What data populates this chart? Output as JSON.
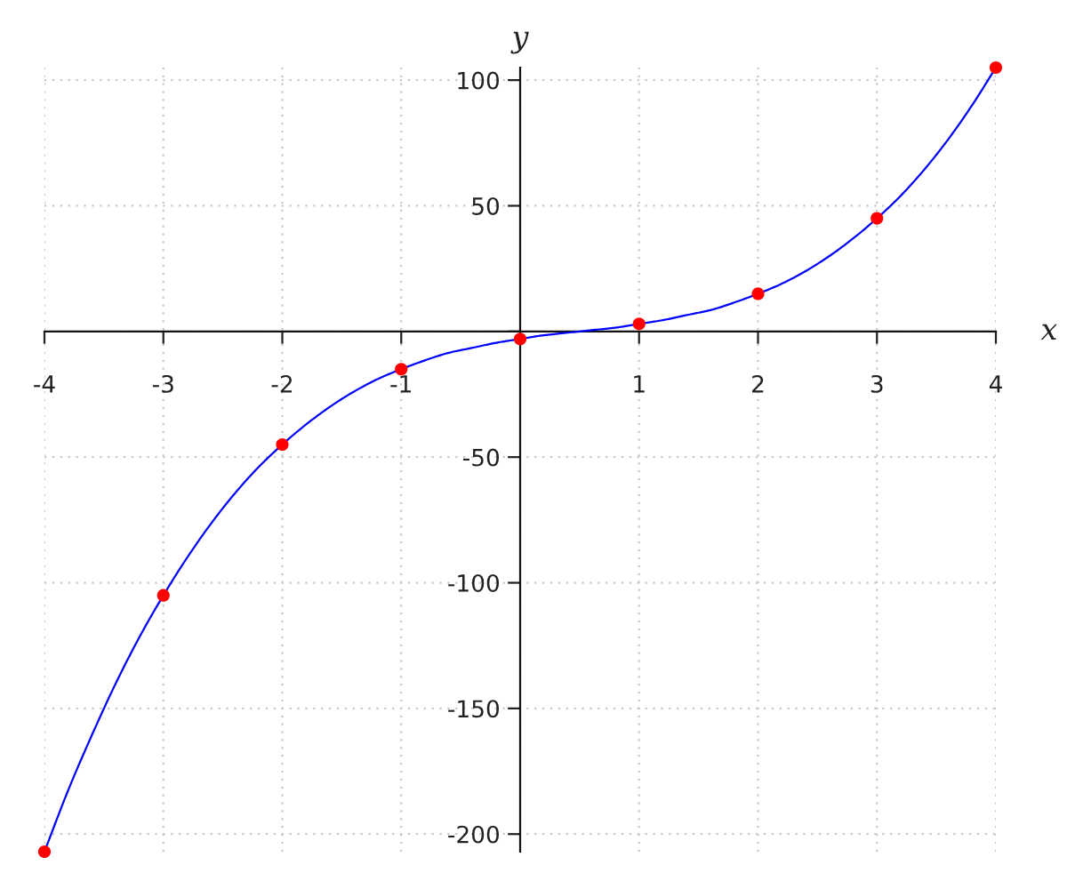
{
  "chart_data": {
    "type": "line",
    "xlabel": "x",
    "ylabel": "y",
    "xlim": [
      -4,
      4
    ],
    "ylim": [
      -207,
      105
    ],
    "xticks": [
      -4,
      -3,
      -2,
      -1,
      {
        "value": 0,
        "label": null
      },
      1,
      2,
      3,
      4
    ],
    "yticks": [
      -200,
      -150,
      -100,
      -50,
      {
        "value": 0,
        "label": null
      },
      50,
      100
    ],
    "grid": true,
    "series": [
      {
        "color": "#0000ff",
        "x": [
          -4,
          -3.8,
          -3.6,
          -3.4,
          -3.2,
          -3,
          -2.8,
          -2.6,
          -2.4,
          -2.2,
          -2,
          -1.8,
          -1.6,
          -1.4,
          -1.2,
          -1,
          -0.8,
          -0.6,
          -0.4,
          -0.2,
          0,
          0.2,
          0.4,
          0.6,
          0.8,
          1,
          1.2,
          1.4,
          1.6,
          1.8,
          2,
          2.2,
          2.4,
          2.6,
          2.8,
          3,
          3.2,
          3.4,
          3.6,
          3.8,
          4
        ],
        "values": [
          -207,
          -182.5,
          -160.5,
          -140,
          -121.5,
          -105,
          -90,
          -76.5,
          -64.5,
          -54,
          -45,
          -37,
          -30,
          -24,
          -19,
          -15,
          -11.5,
          -8.5,
          -6.5,
          -4.5,
          -3,
          -1.5,
          -0.5,
          0.5,
          1.5,
          3,
          4.5,
          6.5,
          8.5,
          11.5,
          15,
          19,
          24,
          30,
          37,
          45,
          54,
          64.5,
          76.5,
          90,
          105
        ]
      },
      {
        "type": "scatter",
        "color": "#ff0000",
        "marker": "circle",
        "x": [
          -4,
          -3,
          -2,
          -1,
          0,
          1,
          2,
          3,
          4
        ],
        "values": [
          -207,
          -105,
          -45,
          -15,
          -3,
          3,
          15,
          45,
          105
        ]
      }
    ]
  }
}
